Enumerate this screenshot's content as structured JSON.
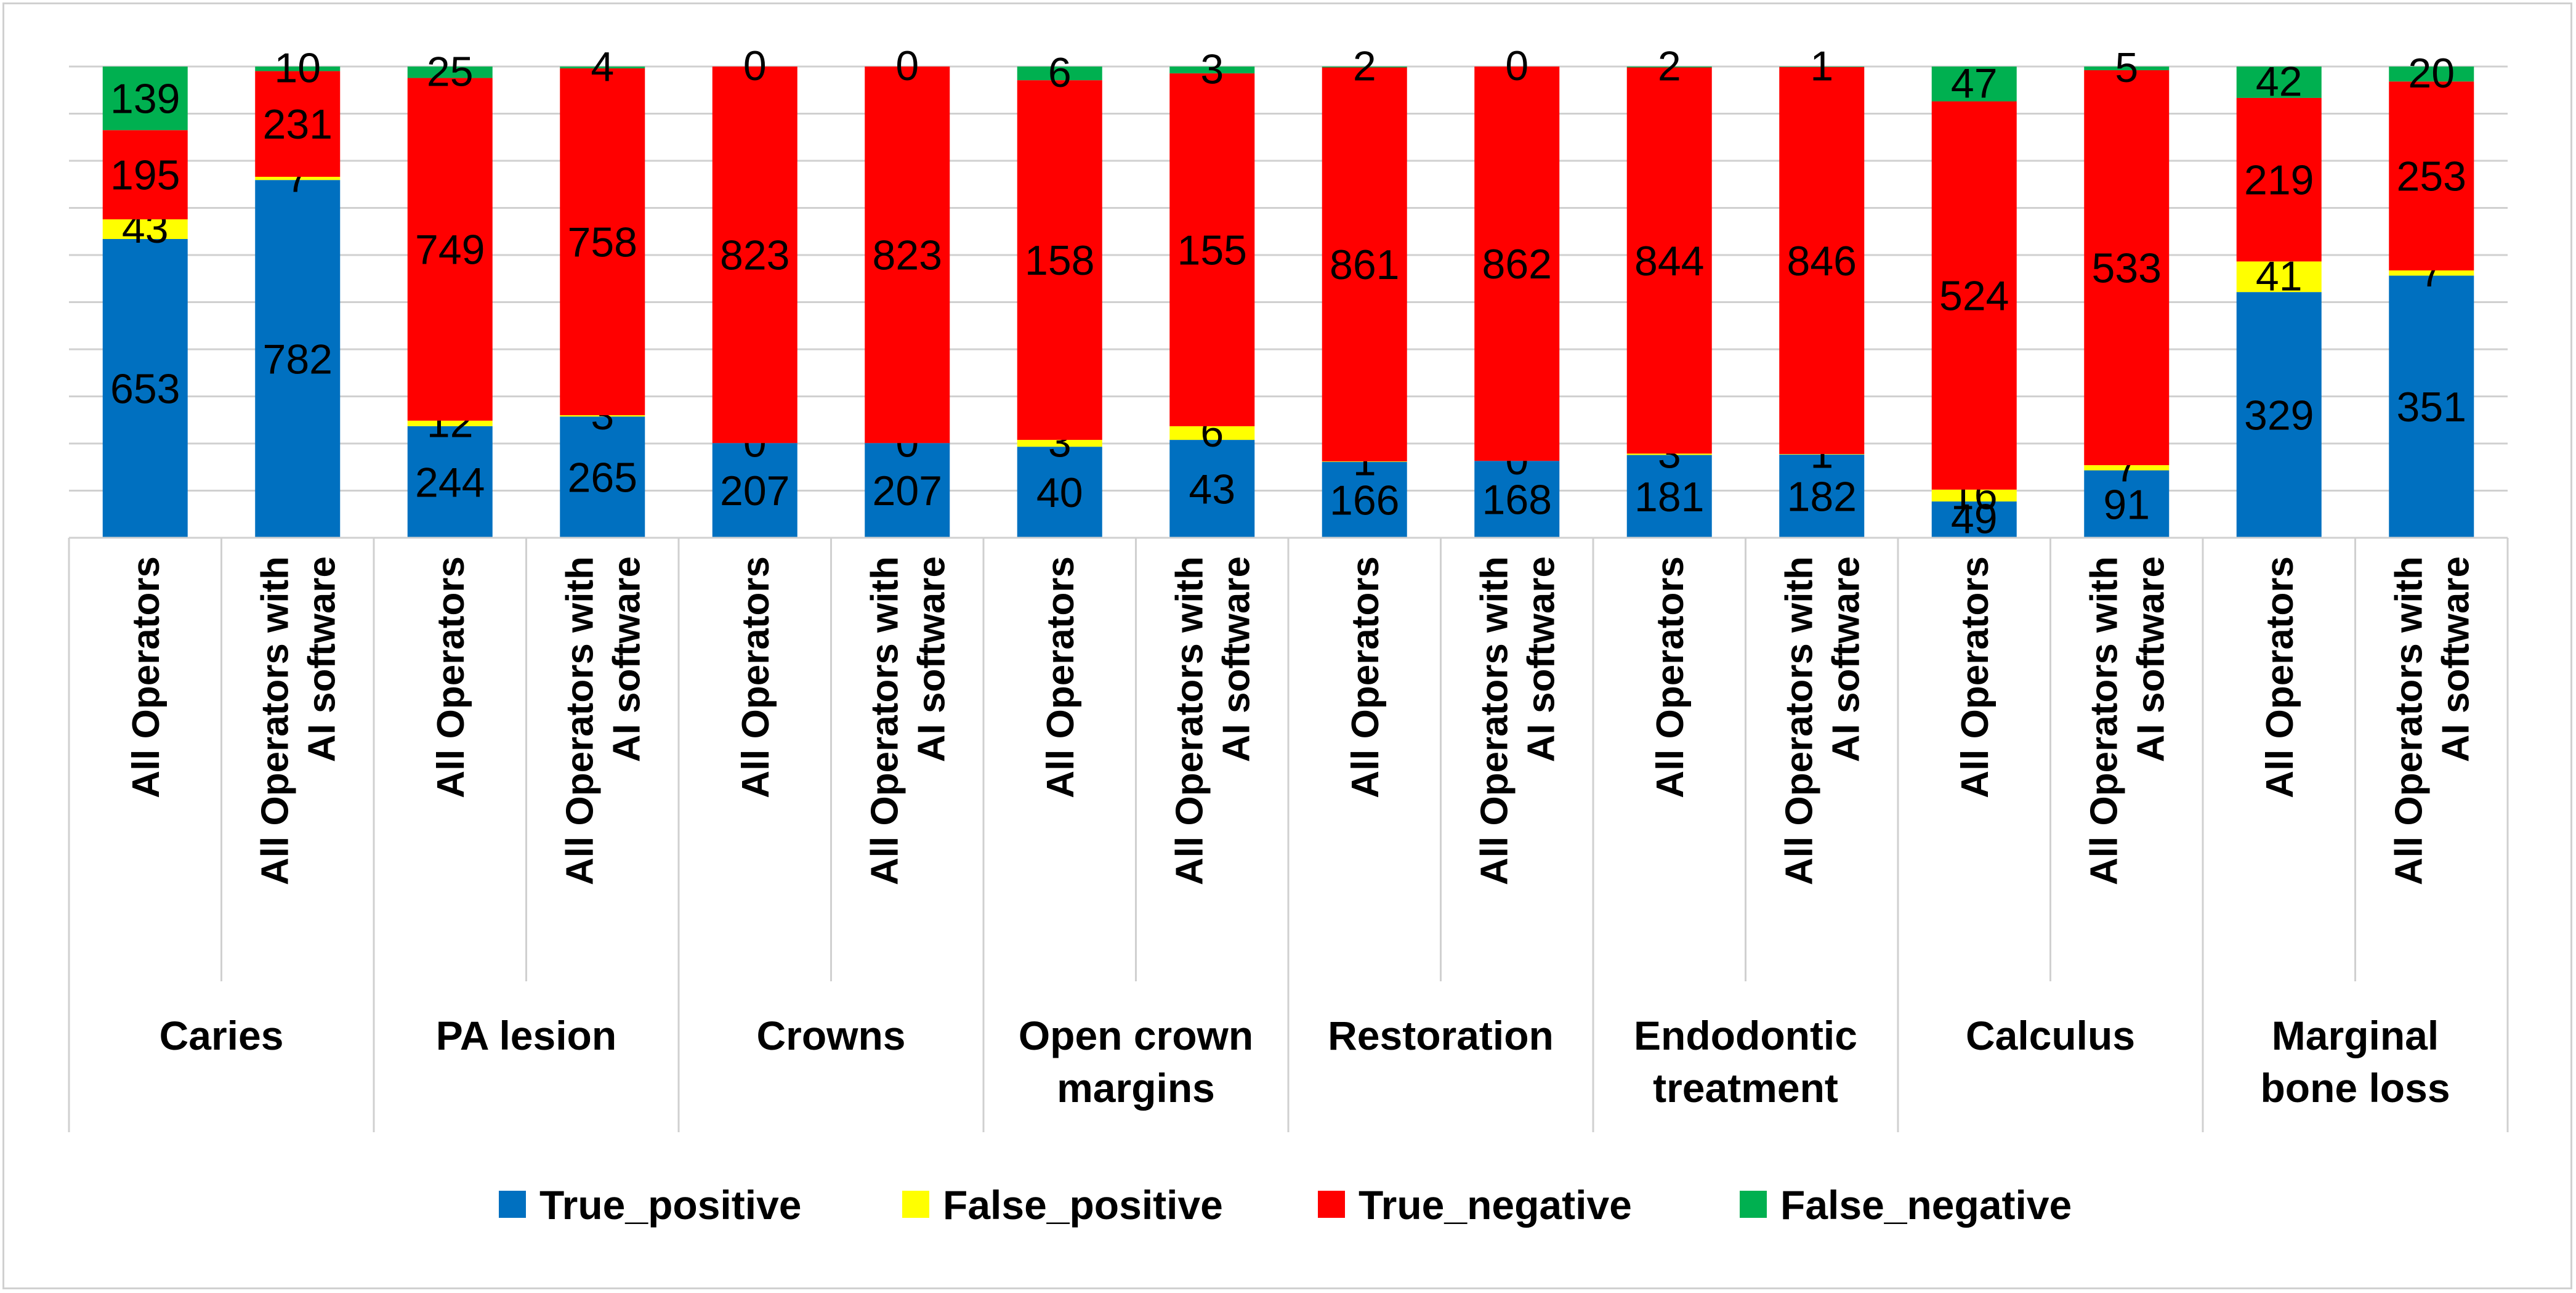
{
  "chart_data": {
    "type": "bar",
    "stacked": true,
    "normalized": true,
    "title": "",
    "xlabel": "",
    "ylabel": "",
    "ylim": [
      0,
      100
    ],
    "grid": true,
    "legend_position": "bottom",
    "series": [
      {
        "name": "True_positive",
        "color": "#0070c0"
      },
      {
        "name": "False_positive",
        "color": "#ffff00"
      },
      {
        "name": "True_negative",
        "color": "#ff0000"
      },
      {
        "name": "False_negative",
        "color": "#00b050"
      }
    ],
    "groups": [
      {
        "label_lines": [
          "Caries"
        ],
        "bars": [
          {
            "label": "All Operators",
            "values": [
              653,
              43,
              195,
              139
            ]
          },
          {
            "label": "All Operators with AI software",
            "values": [
              782,
              7,
              231,
              10
            ]
          }
        ]
      },
      {
        "label_lines": [
          "PA lesion"
        ],
        "bars": [
          {
            "label": "All Operators",
            "values": [
              244,
              12,
              749,
              25
            ]
          },
          {
            "label": "All Operators with AI software",
            "values": [
              265,
              3,
              758,
              4
            ]
          }
        ]
      },
      {
        "label_lines": [
          "Crowns"
        ],
        "bars": [
          {
            "label": "All Operators",
            "values": [
              207,
              0,
              823,
              0
            ]
          },
          {
            "label": "All Operators with AI software",
            "values": [
              207,
              0,
              823,
              0
            ]
          }
        ]
      },
      {
        "label_lines": [
          "Open crown",
          "margins"
        ],
        "bars": [
          {
            "label": "All Operators",
            "values": [
              40,
              3,
              158,
              6
            ]
          },
          {
            "label": "All Operators with AI software",
            "values": [
              43,
              6,
              155,
              3
            ]
          }
        ]
      },
      {
        "label_lines": [
          "Restoration"
        ],
        "bars": [
          {
            "label": "All Operators",
            "values": [
              166,
              1,
              861,
              2
            ]
          },
          {
            "label": "All Operators with AI software",
            "values": [
              168,
              0,
              862,
              0
            ]
          }
        ]
      },
      {
        "label_lines": [
          "Endodontic",
          "treatment"
        ],
        "bars": [
          {
            "label": "All Operators",
            "values": [
              181,
              3,
              844,
              2
            ]
          },
          {
            "label": "All Operators with AI software",
            "values": [
              182,
              1,
              846,
              1
            ]
          }
        ]
      },
      {
        "label_lines": [
          "Calculus"
        ],
        "bars": [
          {
            "label": "All Operators",
            "values": [
              49,
              16,
              524,
              47
            ]
          },
          {
            "label": "All Operators with AI software",
            "values": [
              91,
              7,
              533,
              5
            ]
          }
        ]
      },
      {
        "label_lines": [
          "Marginal",
          "bone loss"
        ],
        "bars": [
          {
            "label": "All Operators",
            "values": [
              329,
              41,
              219,
              42
            ]
          },
          {
            "label": "All Operators with AI software",
            "values": [
              351,
              7,
              253,
              20
            ]
          }
        ]
      }
    ]
  }
}
